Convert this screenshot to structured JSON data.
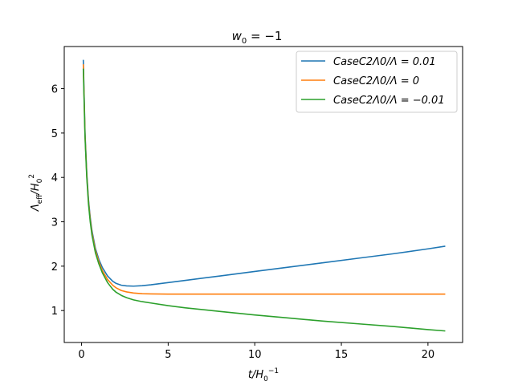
{
  "chart_data": {
    "type": "line",
    "title": "w0 = −1",
    "title_parts": {
      "base": "w",
      "sub": "0",
      "rest": " = −1"
    },
    "xlabel": "t/H0^−1",
    "xlabel_parts": {
      "base": "t/H",
      "sub": "0",
      "sup": "−1"
    },
    "ylabel": "Λeff/H0^2",
    "ylabel_parts": {
      "base": "Λ",
      "sub1": "eff",
      "mid": "/H",
      "sub2": "0",
      "sup": "2"
    },
    "xlim": [
      -1.0,
      22.0
    ],
    "ylim": [
      0.28,
      6.95
    ],
    "xticks": [
      0,
      5,
      10,
      15,
      20
    ],
    "yticks": [
      1,
      2,
      3,
      4,
      5,
      6
    ],
    "legend_position": "top-right",
    "series": [
      {
        "name": "CaseC2Λ0/Λ = 0.01",
        "color": "#1f77b4",
        "x": [
          0.1,
          0.2,
          0.3,
          0.4,
          0.5,
          0.6,
          0.8,
          1.0,
          1.2,
          1.5,
          1.8,
          2.0,
          2.3,
          2.6,
          3.0,
          3.5,
          4.0,
          5.0,
          6.0,
          8.0,
          10.0,
          12.0,
          14.0,
          16.0,
          18.0,
          20.0,
          21.0
        ],
        "y": [
          6.65,
          5.0,
          4.1,
          3.5,
          3.1,
          2.8,
          2.4,
          2.15,
          1.97,
          1.78,
          1.66,
          1.61,
          1.57,
          1.555,
          1.55,
          1.56,
          1.58,
          1.63,
          1.68,
          1.78,
          1.88,
          1.98,
          2.08,
          2.18,
          2.28,
          2.39,
          2.45
        ]
      },
      {
        "name": "CaseC2Λ0/Λ = 0",
        "color": "#ff7f0e",
        "x": [
          0.1,
          0.2,
          0.3,
          0.4,
          0.5,
          0.6,
          0.8,
          1.0,
          1.2,
          1.5,
          1.8,
          2.0,
          2.3,
          2.6,
          3.0,
          3.5,
          4.0,
          5.0,
          6.0,
          8.0,
          10.0,
          14.0,
          18.0,
          21.0
        ],
        "y": [
          6.55,
          4.95,
          4.05,
          3.45,
          3.05,
          2.75,
          2.35,
          2.1,
          1.9,
          1.7,
          1.57,
          1.51,
          1.45,
          1.42,
          1.395,
          1.38,
          1.375,
          1.37,
          1.37,
          1.37,
          1.37,
          1.37,
          1.37,
          1.37
        ]
      },
      {
        "name": "CaseC2Λ0/Λ = −0.01",
        "color": "#2ca02c",
        "x": [
          0.1,
          0.2,
          0.3,
          0.4,
          0.5,
          0.6,
          0.8,
          1.0,
          1.2,
          1.5,
          1.8,
          2.0,
          2.3,
          2.6,
          3.0,
          3.5,
          4.0,
          5.0,
          6.0,
          8.0,
          10.0,
          12.0,
          14.0,
          16.0,
          18.0,
          20.0,
          21.0
        ],
        "y": [
          6.45,
          4.9,
          4.0,
          3.4,
          3.0,
          2.7,
          2.3,
          2.05,
          1.85,
          1.63,
          1.48,
          1.41,
          1.34,
          1.29,
          1.24,
          1.2,
          1.17,
          1.11,
          1.06,
          0.98,
          0.9,
          0.83,
          0.76,
          0.7,
          0.64,
          0.57,
          0.54
        ]
      }
    ]
  }
}
